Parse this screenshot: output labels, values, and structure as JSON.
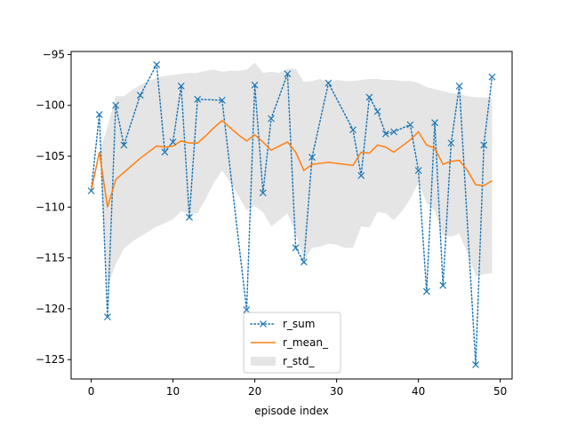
{
  "chart_data": {
    "type": "line",
    "title": "",
    "xlabel": "episode index",
    "ylabel": "",
    "xlim": [
      -2.45,
      51.45
    ],
    "ylim": [
      -126.9,
      -94.7
    ],
    "x_ticks": [
      0,
      10,
      20,
      30,
      40,
      50
    ],
    "x_tick_labels": [
      "0",
      "10",
      "20",
      "30",
      "40",
      "50"
    ],
    "y_ticks": [
      -125,
      -120,
      -115,
      -110,
      -105,
      -100,
      -95
    ],
    "y_tick_labels": [
      "−125",
      "−120",
      "−115",
      "−110",
      "−105",
      "−100",
      "−95"
    ],
    "grid": false,
    "legend_position": "lower center",
    "x": [
      0,
      1,
      2,
      3,
      4,
      5,
      6,
      7,
      8,
      9,
      10,
      11,
      12,
      13,
      14,
      15,
      16,
      17,
      18,
      19,
      20,
      21,
      22,
      23,
      24,
      25,
      26,
      27,
      28,
      29,
      30,
      31,
      32,
      33,
      34,
      35,
      36,
      37,
      38,
      39,
      40,
      41,
      42,
      43,
      44,
      45,
      46,
      47,
      48,
      49
    ],
    "series": [
      {
        "name": "r_sum",
        "style": "dotted-line-x-markers",
        "color": "#1f77b4",
        "values": [
          -108.4,
          -100.9,
          -120.8,
          -100.0,
          -103.9,
          null,
          -99.0,
          null,
          -96.0,
          -104.6,
          -103.6,
          -98.1,
          -111.0,
          -99.4,
          null,
          null,
          -99.5,
          null,
          null,
          -120.1,
          -98.0,
          -108.6,
          -101.3,
          null,
          -96.9,
          -114.0,
          -115.4,
          -105.1,
          null,
          -97.8,
          null,
          null,
          -102.4,
          -106.9,
          -99.2,
          -100.6,
          -102.8,
          -102.6,
          null,
          -101.9,
          -106.4,
          -118.3,
          -101.7,
          -117.7,
          -103.7,
          -98.1,
          null,
          -125.5,
          -103.9,
          -97.2
        ]
      },
      {
        "name": "r_mean_",
        "style": "solid-line",
        "color": "#ff7f0e",
        "values": [
          -108.4,
          -104.6,
          -110.0,
          -107.3,
          -106.6,
          -105.9,
          -105.2,
          -104.6,
          -104.0,
          -104.1,
          -104.0,
          -103.5,
          -103.7,
          -103.7,
          -103.0,
          -102.2,
          -101.5,
          -102.2,
          -102.9,
          -103.5,
          -102.9,
          -103.6,
          -104.4,
          -104.0,
          -103.6,
          -104.6,
          -106.4,
          -105.8,
          -105.7,
          -105.6,
          -105.7,
          -105.8,
          -105.9,
          -104.6,
          -104.7,
          -103.9,
          -104.1,
          -104.6,
          -104.0,
          -103.4,
          -102.6,
          -103.9,
          -104.2,
          -105.8,
          -105.5,
          -105.4,
          -106.4,
          -107.8,
          -107.9,
          -107.4
        ]
      },
      {
        "name": "r_std_",
        "style": "filled-band",
        "color": "#e5e5e5",
        "upper": [
          -108.4,
          -104.6,
          -102.1,
          -99.1,
          -99.1,
          -98.5,
          -98.0,
          -97.6,
          -97.3,
          -97.1,
          -97.0,
          -96.9,
          -96.8,
          -96.8,
          -96.6,
          -96.5,
          -96.7,
          -96.6,
          -96.6,
          -96.5,
          -95.8,
          -96.8,
          -96.7,
          -96.8,
          -96.4,
          -96.4,
          -97.7,
          -97.6,
          -97.4,
          -97.7,
          -97.5,
          -97.6,
          -97.6,
          -97.5,
          -97.4,
          -97.4,
          -97.5,
          -97.5,
          -97.6,
          -97.6,
          -97.8,
          -98.2,
          -98.4,
          -98.6,
          -98.8,
          -98.9,
          -99.1,
          -99.2,
          -99.2,
          -99.3
        ],
        "lower": [
          -108.4,
          -104.6,
          -117.9,
          -115.6,
          -114.1,
          -113.4,
          -112.9,
          -112.4,
          -111.9,
          -111.6,
          -111.2,
          -110.4,
          -110.6,
          -110.6,
          -109.2,
          -107.6,
          -106.4,
          -107.6,
          -108.9,
          -110.3,
          -109.9,
          -110.5,
          -111.9,
          -111.3,
          -110.6,
          -112.6,
          -115.3,
          -114.0,
          -113.9,
          -113.6,
          -113.7,
          -114.0,
          -114.0,
          -111.9,
          -112.0,
          -110.5,
          -110.6,
          -111.3,
          -110.4,
          -109.2,
          -107.6,
          -109.6,
          -110.4,
          -112.8,
          -112.9,
          -112.6,
          -114.6,
          -116.8,
          -116.6,
          -116.5
        ]
      }
    ]
  }
}
